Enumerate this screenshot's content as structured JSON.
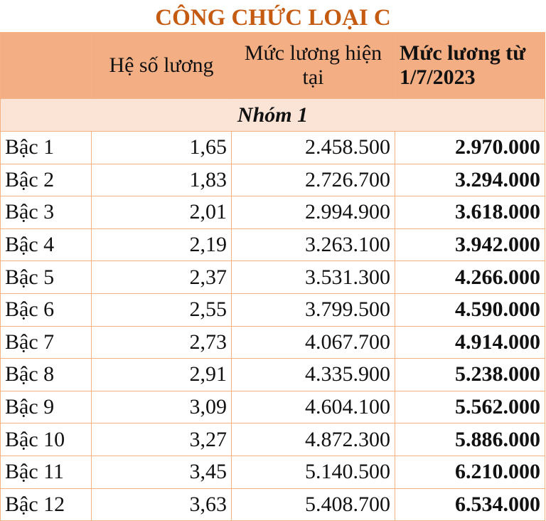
{
  "title": "CÔNG CHỨC LOẠI C",
  "headers": [
    "",
    "Hệ số lương",
    "Mức lương hiện tại",
    "Mức lương từ 1/7/2023"
  ],
  "group": "Nhóm 1",
  "rows": [
    [
      "Bậc 1",
      "1,65",
      "2.458.500",
      "2.970.000"
    ],
    [
      "Bậc 2",
      "1,83",
      "2.726.700",
      "3.294.000"
    ],
    [
      "Bậc 3",
      "2,01",
      "2.994.900",
      "3.618.000"
    ],
    [
      "Bậc 4",
      "2,19",
      "3.263.100",
      "3.942.000"
    ],
    [
      "Bậc 5",
      "2,37",
      "3.531.300",
      "4.266.000"
    ],
    [
      "Bậc 6",
      "2,55",
      "3.799.500",
      "4.590.000"
    ],
    [
      "Bậc 7",
      "2,73",
      "4.067.700",
      "4.914.000"
    ],
    [
      "Bậc 8",
      "2,91",
      "4.335.900",
      "5.238.000"
    ],
    [
      "Bậc 9",
      "3,09",
      "4.604.100",
      "5.562.000"
    ],
    [
      "Bậc 10",
      "3,27",
      "4.872.300",
      "5.886.000"
    ],
    [
      "Bậc 11",
      "3,45",
      "5.140.500",
      "6.210.000"
    ],
    [
      "Bậc 12",
      "3,63",
      "5.408.700",
      "6.534.000"
    ]
  ],
  "colors": {
    "title": "#c55a11",
    "header_bg": "#f4ae84",
    "group_bg": "#fbe3d6",
    "border": "#f4b183"
  }
}
